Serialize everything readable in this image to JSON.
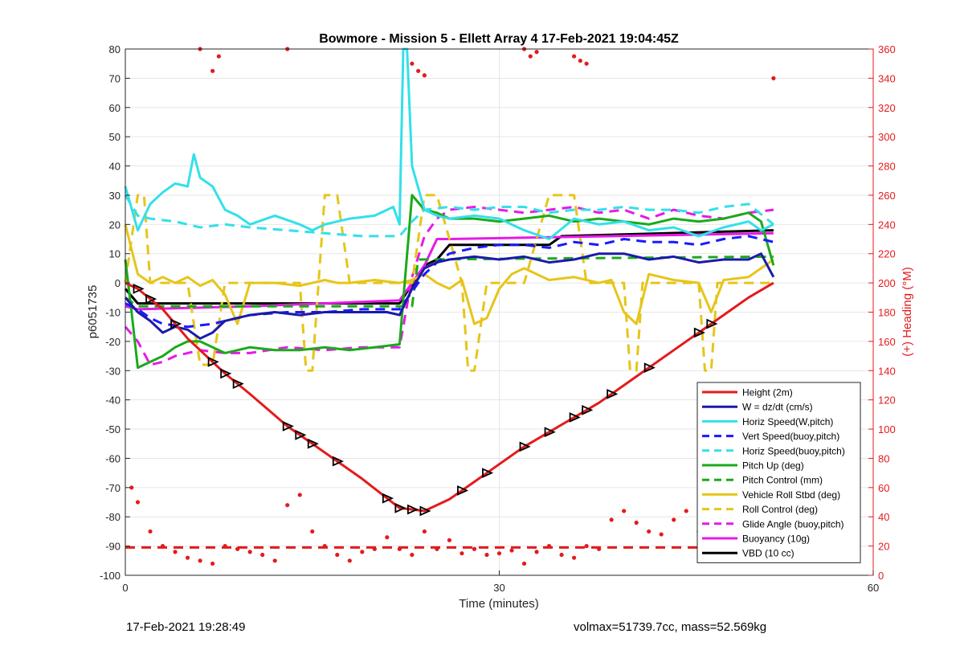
{
  "chart_data": {
    "type": "line",
    "title": "Bowmore - Mission 5 - Ellett Array 4 17-Feb-2021 19:04:45Z",
    "xlabel": "Time (minutes)",
    "ylabel_left": "p6051735",
    "ylabel_right": "(+) Heading (°M)",
    "xlim": [
      0,
      60
    ],
    "ylim_left": [
      -100,
      80
    ],
    "ylim_right": [
      0,
      360
    ],
    "xticks": [
      0,
      30,
      60
    ],
    "yticks_left": [
      80,
      70,
      60,
      50,
      40,
      30,
      20,
      10,
      0,
      -10,
      -20,
      -30,
      -40,
      -50,
      -60,
      -70,
      -80,
      -90,
      -100
    ],
    "yticks_right": [
      360,
      340,
      320,
      300,
      280,
      260,
      240,
      220,
      200,
      180,
      160,
      140,
      120,
      100,
      80,
      60,
      40,
      20,
      0
    ],
    "grid": true,
    "legend_position": "bottom-right",
    "series": [
      {
        "name": "Height (2m)",
        "color": "#e41a1c",
        "style": "solid",
        "x": [
          0,
          1,
          3,
          5,
          8,
          10,
          13,
          15,
          17,
          19,
          22,
          24,
          26,
          28,
          30,
          32,
          34,
          36,
          38,
          40,
          42,
          44,
          46,
          48,
          50,
          52
        ],
        "y": [
          0,
          -2,
          -9,
          -19,
          -31,
          -38,
          -49,
          -55,
          -61,
          -67,
          -77,
          -78,
          -74,
          -68,
          -62,
          -56,
          -51,
          -46,
          -41,
          -35,
          -29,
          -23,
          -17,
          -11,
          -5,
          0
        ]
      },
      {
        "name": "W = dz/dt (cm/s)",
        "color": "#1a1aaa",
        "style": "solid",
        "x": [
          0,
          1,
          2,
          3,
          4,
          5,
          6,
          7,
          8,
          10,
          12,
          14,
          16,
          18,
          20,
          21,
          22,
          23,
          24,
          25,
          26,
          28,
          30,
          32,
          34,
          36,
          38,
          40,
          42,
          44,
          46,
          48,
          50,
          51,
          52
        ],
        "y": [
          -5,
          -10,
          -13,
          -17,
          -15,
          -16,
          -19,
          -17,
          -13,
          -11,
          -10,
          -11,
          -10,
          -10,
          -10,
          -10,
          -11,
          -2,
          5,
          7,
          8,
          9,
          8,
          9,
          7,
          8,
          10,
          10,
          8,
          9,
          7,
          8,
          8,
          10,
          2
        ]
      },
      {
        "name": "Horiz Speed(W,pitch)",
        "color": "#33e0ea",
        "style": "solid",
        "x": [
          0,
          1,
          2,
          3,
          4,
          5,
          5.5,
          6,
          7,
          8,
          9,
          10,
          12,
          14,
          15,
          16,
          18,
          20,
          21.5,
          22,
          22.3,
          22.6,
          23,
          24,
          25,
          26,
          28,
          30,
          32,
          34,
          36,
          38,
          40,
          42,
          44,
          46,
          48,
          50,
          51,
          52
        ],
        "y": [
          33,
          18,
          27,
          31,
          34,
          33,
          44,
          36,
          33,
          25,
          23,
          20,
          23,
          20,
          18,
          20,
          22,
          23,
          26,
          20,
          80,
          80,
          40,
          25,
          23,
          22,
          23,
          22,
          18,
          15,
          22,
          20,
          21,
          18,
          19,
          16,
          19,
          21,
          18,
          20
        ]
      },
      {
        "name": "Vert Speed(buoy,pitch)",
        "color": "#1a1aff",
        "style": "dashed",
        "x": [
          0,
          1,
          2,
          3,
          5,
          7,
          8,
          10,
          13,
          16,
          19,
          22,
          23,
          24,
          25,
          26,
          28,
          30,
          32,
          34,
          36,
          38,
          40,
          42,
          44,
          46,
          48,
          50,
          52
        ],
        "y": [
          -7,
          -9,
          -12,
          -14,
          -15,
          -14,
          -13,
          -11,
          -10,
          -10,
          -9,
          -9,
          -3,
          3,
          7,
          10,
          12,
          13,
          13,
          12,
          14,
          13,
          15,
          14,
          14,
          13,
          15,
          16,
          14
        ]
      },
      {
        "name": "Horiz Speed(buoy,pitch)",
        "color": "#33e0ea",
        "style": "dashed",
        "x": [
          0,
          1,
          2,
          4,
          6,
          8,
          10,
          13,
          16,
          19,
          22,
          23,
          24,
          26,
          28,
          30,
          32,
          34,
          36,
          38,
          40,
          42,
          44,
          46,
          48,
          50,
          52
        ],
        "y": [
          30,
          23,
          22,
          21,
          19,
          20,
          19,
          18,
          17,
          16,
          16,
          21,
          25,
          26,
          25,
          26,
          26,
          24,
          25,
          25,
          26,
          25,
          25,
          24,
          26,
          27,
          20
        ]
      },
      {
        "name": "Pitch Up (deg)",
        "color": "#1aaa1a",
        "style": "solid",
        "x": [
          0,
          0.5,
          1,
          2,
          3,
          4,
          5,
          6,
          7,
          8,
          10,
          12,
          14,
          16,
          18,
          20,
          22,
          23,
          24,
          25,
          26,
          28,
          30,
          32,
          34,
          36,
          38,
          40,
          42,
          44,
          46,
          48,
          50,
          51,
          52
        ],
        "y": [
          8,
          -10,
          -29,
          -27,
          -25,
          -22,
          -20,
          -20,
          -22,
          -24,
          -22,
          -23,
          -23,
          -22,
          -23,
          -22,
          -21,
          30,
          25,
          24,
          22,
          22,
          21,
          22,
          23,
          21,
          22,
          21,
          20,
          22,
          21,
          22,
          24,
          21,
          6
        ]
      },
      {
        "name": "Pitch Control (mm)",
        "color": "#1aaa1a",
        "style": "dashed",
        "x": [
          0,
          1,
          23,
          23.5,
          52
        ],
        "y": [
          -5,
          -8,
          -8,
          8,
          9
        ]
      },
      {
        "name": "Vehicle Roll Stbd (deg)",
        "color": "#e6c51a",
        "style": "solid",
        "x": [
          0,
          1,
          2,
          3,
          4,
          5,
          6,
          7,
          8,
          9,
          10,
          12,
          14,
          15,
          16,
          17,
          18,
          20,
          22,
          23,
          24,
          25,
          26,
          27,
          28,
          29,
          30,
          31,
          32,
          34,
          36,
          38,
          39,
          40,
          41,
          42,
          44,
          46,
          47,
          48,
          50,
          52
        ],
        "y": [
          20,
          3,
          0,
          2,
          0,
          2,
          -1,
          1,
          -4,
          -14,
          0,
          0,
          -1,
          0,
          1,
          0,
          0,
          1,
          0,
          1,
          3,
          0,
          -2,
          1,
          -14,
          -12,
          -2,
          3,
          5,
          1,
          2,
          0,
          1,
          -10,
          -14,
          3,
          1,
          0,
          -10,
          1,
          2,
          8
        ]
      },
      {
        "name": "Roll Control (deg)",
        "color": "#e6c51a",
        "style": "dashed",
        "x": [
          0,
          1,
          1.5,
          2,
          5,
          6,
          7,
          8,
          10,
          14,
          14.5,
          15,
          15.5,
          16,
          17,
          18,
          20,
          23,
          24,
          25,
          27,
          27.5,
          28,
          29,
          30,
          32,
          34,
          36,
          37,
          38,
          40,
          40.5,
          41,
          41.5,
          42,
          44,
          46,
          46.5,
          47,
          47.5,
          48,
          52
        ],
        "y": [
          0,
          30,
          30,
          0,
          0,
          -28,
          -28,
          0,
          0,
          0,
          -30,
          -30,
          0,
          30,
          30,
          0,
          0,
          0,
          30,
          30,
          0,
          -30,
          -30,
          0,
          0,
          0,
          30,
          30,
          0,
          0,
          0,
          -30,
          -30,
          0,
          0,
          0,
          0,
          -30,
          -30,
          0,
          0,
          0
        ]
      },
      {
        "name": "Glide Angle (buoy,pitch)",
        "color": "#e61ae6",
        "style": "dashed",
        "x": [
          0,
          1,
          2,
          3,
          4,
          6,
          8,
          10,
          13,
          16,
          19,
          22,
          23,
          24,
          25,
          26,
          28,
          30,
          32,
          34,
          36,
          38,
          40,
          42,
          44,
          46,
          48,
          50,
          52
        ],
        "y": [
          -15,
          -20,
          -28,
          -27,
          -25,
          -23,
          -24,
          -24,
          -22,
          -23,
          -22,
          -22,
          2,
          16,
          22,
          25,
          26,
          25,
          24,
          25,
          26,
          24,
          25,
          22,
          25,
          23,
          22,
          24,
          25
        ]
      },
      {
        "name": "Buoyancy (10g)",
        "color": "#e61ae6",
        "style": "solid",
        "x": [
          0,
          1,
          10,
          22,
          24,
          25,
          26,
          52
        ],
        "y": [
          -8,
          -9,
          -8,
          -6,
          6,
          15,
          15,
          17
        ]
      },
      {
        "name": "VBD (10 cc)",
        "color": "#000000",
        "style": "solid",
        "x": [
          0,
          1,
          10,
          22,
          24,
          25,
          26,
          34,
          35,
          52
        ],
        "y": [
          -2,
          -7,
          -7,
          -7,
          6,
          8,
          13,
          13,
          16,
          18
        ]
      },
      {
        "name": "Heading",
        "color": "#e41a1c",
        "style": "markers",
        "axis": "right",
        "x": [
          0.5,
          1,
          2,
          3,
          4,
          5,
          6,
          7,
          8,
          9,
          10,
          11,
          12,
          13,
          14,
          15,
          16,
          17,
          18,
          19,
          20,
          21,
          22,
          23,
          24,
          25,
          26,
          27,
          28,
          29,
          30,
          31,
          32,
          33,
          34,
          35,
          36,
          37,
          38,
          39,
          40,
          41,
          42,
          43,
          44,
          45,
          46,
          47,
          48,
          49,
          50,
          51,
          52
        ],
        "y": [
          60,
          50,
          30,
          20,
          16,
          12,
          10,
          8,
          20,
          18,
          16,
          14,
          10,
          48,
          55,
          30,
          20,
          14,
          10,
          16,
          18,
          26,
          18,
          14,
          30,
          18,
          24,
          15,
          18,
          14,
          15,
          17,
          8,
          16,
          20,
          14,
          12,
          20,
          18,
          38,
          44,
          36,
          30,
          28,
          38,
          44,
          30,
          28,
          25,
          22,
          20,
          18,
          20
        ]
      },
      {
        "name": "Heading (wrapped)",
        "color": "#e41a1c",
        "style": "markers",
        "axis": "right",
        "x": [
          6,
          7,
          7.5,
          13,
          23,
          23.5,
          24,
          32,
          32.5,
          33,
          36,
          36.5,
          37,
          52
        ],
        "y": [
          360,
          345,
          355,
          360,
          350,
          345,
          342,
          360,
          355,
          358,
          355,
          352,
          350,
          340
        ]
      },
      {
        "name": "Heading target",
        "color": "#e41a1c",
        "style": "dashed",
        "axis": "right",
        "x": [
          0,
          52
        ],
        "y": [
          19,
          19
        ]
      }
    ],
    "markers": {
      "series": "Height (2m)",
      "x": [
        1,
        2,
        4,
        7,
        8,
        9,
        13,
        14,
        15,
        17,
        21,
        22,
        23,
        24,
        27,
        29,
        32,
        34,
        36,
        37,
        39,
        42,
        46,
        47
      ]
    }
  },
  "footer": {
    "left": "17-Feb-2021 19:28:49",
    "right": "volmax=51739.7cc, mass=52.569kg"
  }
}
